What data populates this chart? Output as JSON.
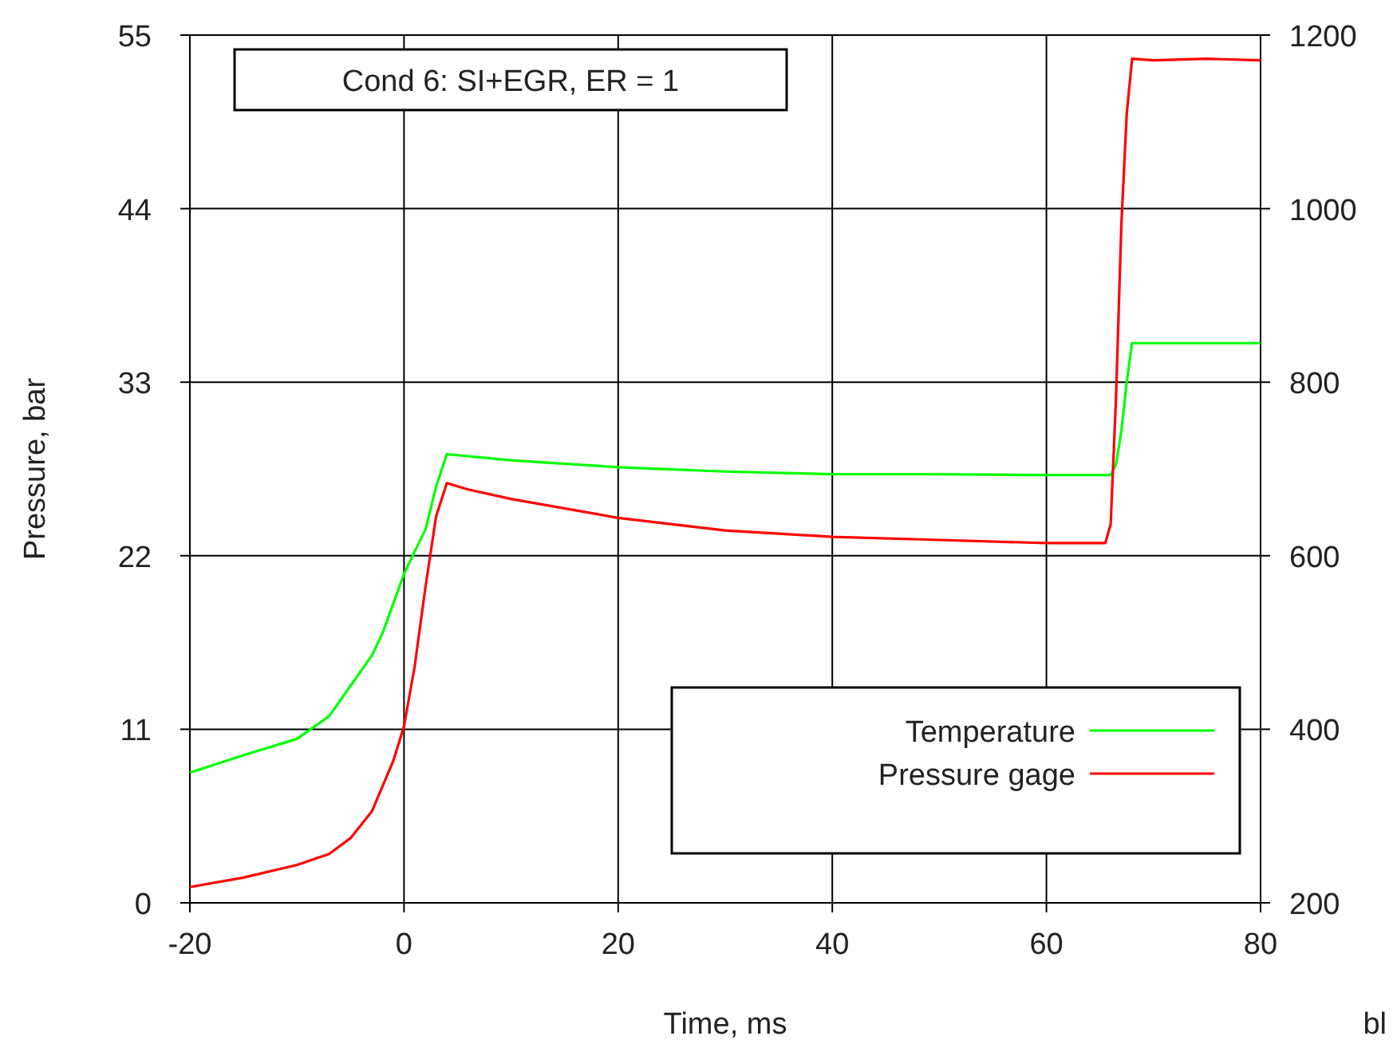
{
  "chart_data": {
    "type": "line",
    "xlabel": "Time, ms",
    "ylabel": "Pressure, bar",
    "annotations": [
      "Cond 6: SI+EGR, ER = 1",
      "bl"
    ],
    "xlim": [
      -20,
      80
    ],
    "xticks": [
      -20,
      0,
      20,
      40,
      60,
      80
    ],
    "ylim": [
      0,
      55
    ],
    "yticks": [
      0,
      11,
      22,
      33,
      44,
      55
    ],
    "y2lim": [
      200,
      1200
    ],
    "y2ticks": [
      200,
      400,
      600,
      800,
      1000,
      1200
    ],
    "grid": true,
    "legend": "bottom right",
    "marker": "none",
    "line_style": "solid",
    "series": [
      {
        "name": "Temperature",
        "color": "#00ff00",
        "axis": "y2",
        "x": [
          -20,
          -15,
          -10,
          -7,
          -5,
          -3,
          -2,
          -1,
          0,
          1,
          2,
          3,
          4,
          10,
          20,
          30,
          40,
          50,
          60,
          66,
          66.5,
          67,
          67.5,
          68,
          70,
          75,
          80
        ],
        "values": [
          350,
          370,
          389,
          415,
          450,
          485,
          511,
          545,
          579,
          605,
          630,
          680,
          717,
          710,
          702,
          697,
          694,
          694,
          693,
          693,
          705,
          744,
          800,
          845,
          845,
          845,
          845
        ]
      },
      {
        "name": "Pressure gage",
        "color": "#ff0000",
        "axis": "y",
        "x": [
          -20,
          -15,
          -10,
          -7,
          -5,
          -3,
          -2,
          -1,
          0,
          1,
          2,
          3,
          4,
          6,
          10,
          20,
          30,
          40,
          50,
          60,
          65.5,
          66,
          66.5,
          67,
          67.5,
          68,
          70,
          75,
          80
        ],
        "values": [
          1,
          1.6,
          2.4,
          3.1,
          4.1,
          5.8,
          7.4,
          9,
          11.2,
          15,
          20,
          24.5,
          26.6,
          26.2,
          25.6,
          24.4,
          23.6,
          23.2,
          23,
          22.8,
          22.8,
          24,
          32,
          43,
          50,
          53.5,
          53.4,
          53.5,
          53.4
        ]
      }
    ]
  }
}
